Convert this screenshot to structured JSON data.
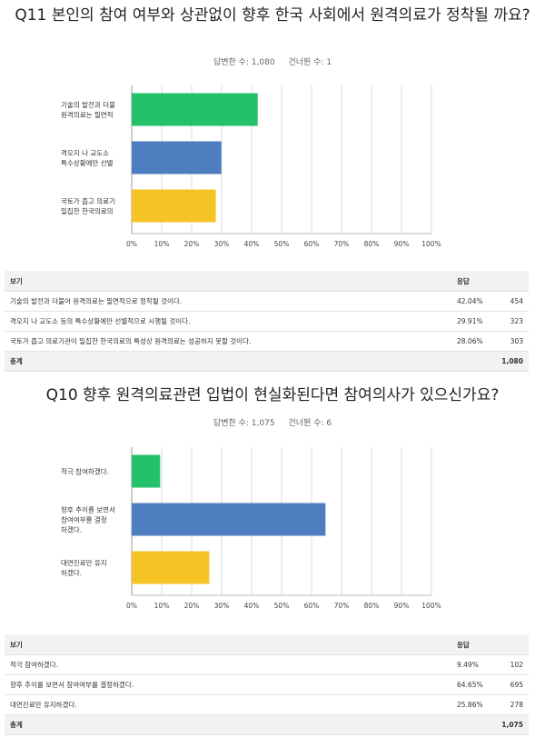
{
  "q11": {
    "title": "Q11 본인의 참여 여부와 상관없이 향후 한국 사회에서 원격의료가 정착될 까요?",
    "answered_label": "답변한 수: 1,080",
    "skipped_label": "건너뛴 수: 1",
    "chart_data": {
      "type": "bar",
      "orientation": "horizontal",
      "categories": [
        "기술의 발전과 더불 원격의료는 필연적",
        "격오지 나 교도소 특수상황에만 선별",
        "국토가 좁고 의료기 밀집한 한국의료의"
      ],
      "values": [
        42.04,
        29.91,
        28.06
      ],
      "colors": [
        "#21c26a",
        "#4f7ec0",
        "#f6c325"
      ],
      "xticks": [
        "0%",
        "10%",
        "20%",
        "30%",
        "40%",
        "50%",
        "60%",
        "70%",
        "80%",
        "90%",
        "100%"
      ],
      "xlim": [
        0,
        100
      ],
      "grid": true
    },
    "table": {
      "header": {
        "choice": "보기",
        "response": "응답"
      },
      "rows": [
        {
          "choice": "기술의 발전과 더불어 원격의료는 필연적으로 정착될 것이다.",
          "pct": "42.04%",
          "count": "454"
        },
        {
          "choice": "격오지 나 교도소 등의 특수상황에만 선별적으로 시행될 것이다.",
          "pct": "29.91%",
          "count": "323"
        },
        {
          "choice": "국토가 좁고 의료기관이 밀집한 한국의료의 특성상 원격의료는 성공하지 못할 것이다.",
          "pct": "28.06%",
          "count": "303"
        }
      ],
      "total": {
        "label": "총계",
        "count": "1,080"
      }
    }
  },
  "q10": {
    "title": "Q10 향후 원격의료관련 입법이 현실화된다면 참여의사가 있으신가요?",
    "answered_label": "답변한 수: 1,075",
    "skipped_label": "건너뛴 수: 6",
    "chart_data": {
      "type": "bar",
      "orientation": "horizontal",
      "categories": [
        "적극 참여하겠다.",
        "향후 추이를 보면서 참여여부를 결정 하겠다.",
        "대면진료만 유지 하겠다."
      ],
      "values": [
        9.49,
        64.65,
        25.86
      ],
      "colors": [
        "#21c26a",
        "#4f7ec0",
        "#f6c325"
      ],
      "xticks": [
        "0%",
        "10%",
        "20%",
        "30%",
        "40%",
        "50%",
        "60%",
        "70%",
        "80%",
        "90%",
        "100%"
      ],
      "xlim": [
        0,
        100
      ],
      "grid": true
    },
    "table": {
      "header": {
        "choice": "보기",
        "response": "응답"
      },
      "rows": [
        {
          "choice": "적극 참여하겠다.",
          "pct": "9.49%",
          "count": "102"
        },
        {
          "choice": "향후 추이를 보면서 참여여부를 결정하겠다.",
          "pct": "64.65%",
          "count": "695"
        },
        {
          "choice": "대면진료만 유지하겠다.",
          "pct": "25.86%",
          "count": "278"
        }
      ],
      "total": {
        "label": "총계",
        "count": "1,075"
      }
    }
  }
}
